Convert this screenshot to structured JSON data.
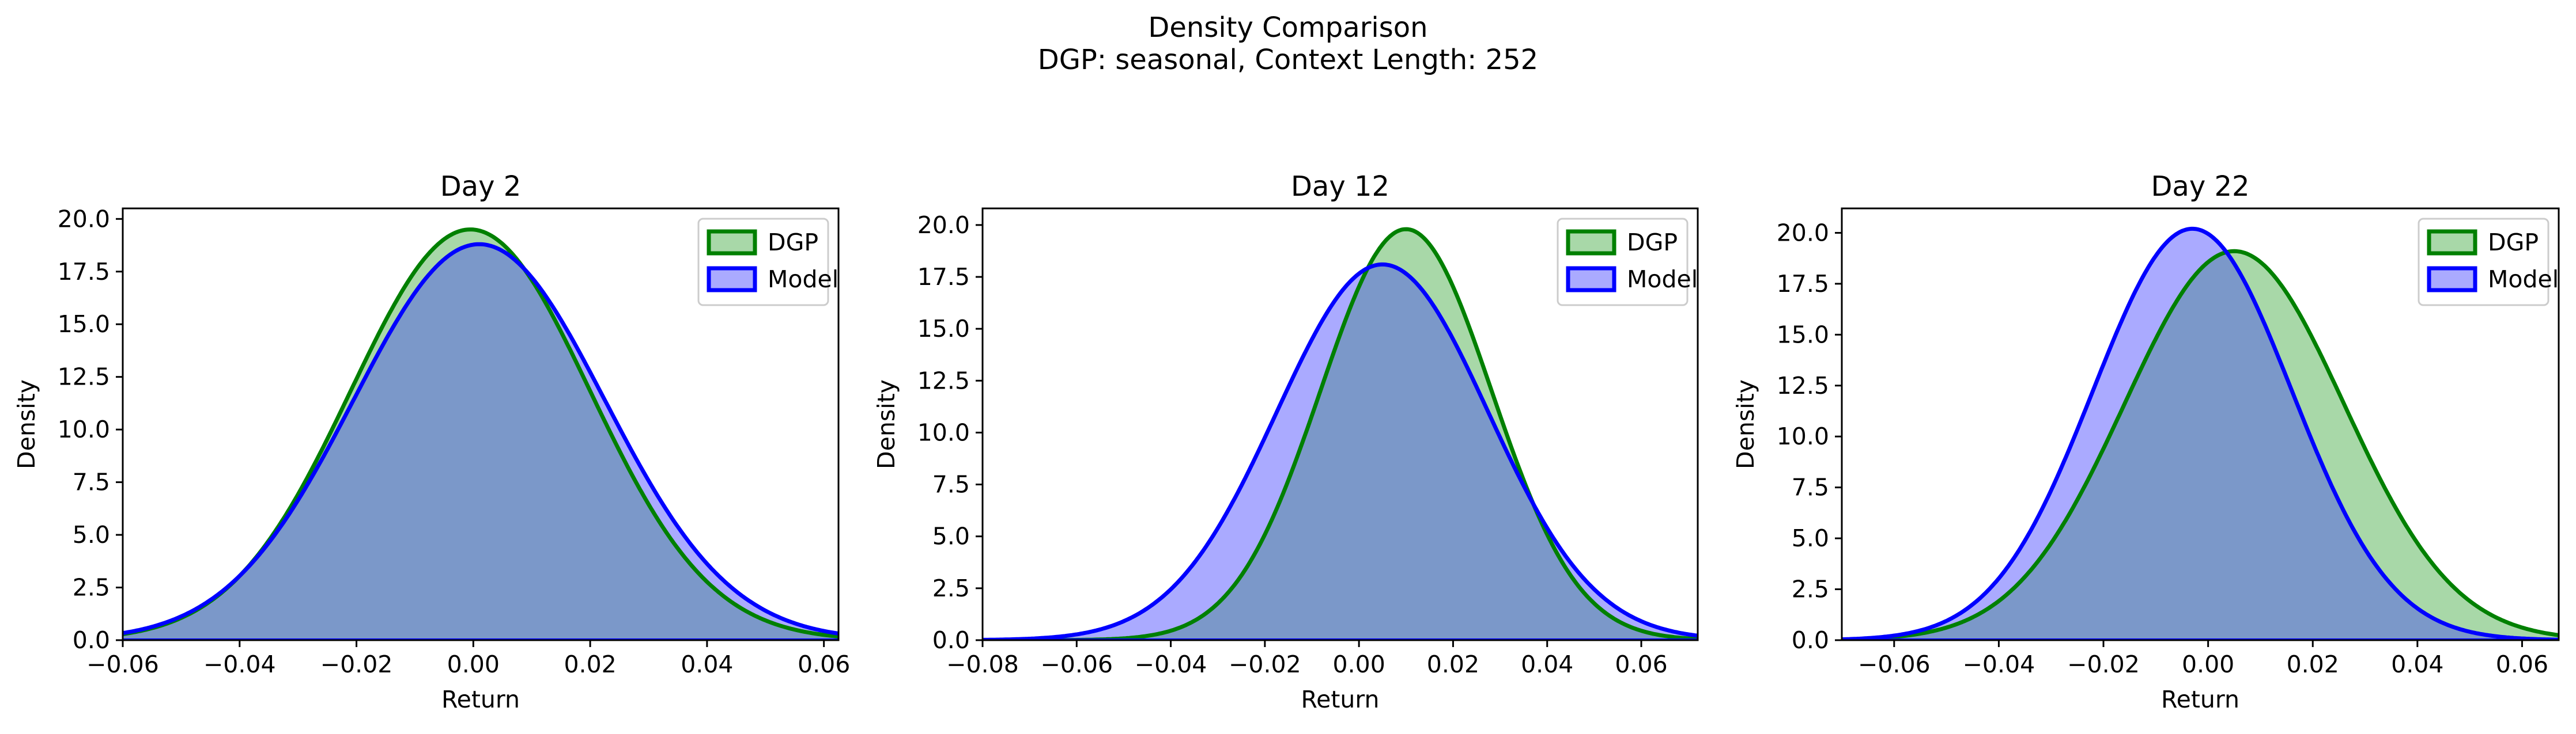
{
  "figure": {
    "title": "Density Comparison",
    "subtitle": "DGP: seasonal, Context Length: 252"
  },
  "colors": {
    "dgp_line": "#008000",
    "dgp_fill": "#a8d8a8",
    "model_line": "#0000ff",
    "model_fill": "#aaaaff",
    "overlap_fill": "#7b98c9"
  },
  "chart_data": [
    {
      "type": "area",
      "title": "Day 2",
      "xlabel": "Return",
      "ylabel": "Density",
      "xlim": [
        -0.06,
        0.0625
      ],
      "ylim": [
        0,
        20.5
      ],
      "xticks": [
        -0.06,
        -0.04,
        -0.02,
        0.0,
        0.02,
        0.04,
        0.06
      ],
      "xtick_labels": [
        "−0.06",
        "−0.04",
        "−0.02",
        "0.00",
        "0.02",
        "0.04",
        "0.06"
      ],
      "yticks": [
        0.0,
        2.5,
        5.0,
        7.5,
        10.0,
        12.5,
        15.0,
        17.5,
        20.0
      ],
      "ytick_labels": [
        "0.0",
        "2.5",
        "5.0",
        "7.5",
        "10.0",
        "12.5",
        "15.0",
        "17.5",
        "20.0"
      ],
      "legend": "top-right",
      "grid": false,
      "series": [
        {
          "name": "DGP",
          "distribution": "normal",
          "mean": -0.0005,
          "std": 0.0205,
          "peak": 19.5
        },
        {
          "name": "Model",
          "distribution": "normal",
          "mean": 0.001,
          "std": 0.0215,
          "peak": 18.8
        }
      ]
    },
    {
      "type": "area",
      "title": "Day 12",
      "xlabel": "Return",
      "ylabel": "Density",
      "xlim": [
        -0.08,
        0.072
      ],
      "ylim": [
        0,
        20.8
      ],
      "xticks": [
        -0.08,
        -0.06,
        -0.04,
        -0.02,
        0.0,
        0.02,
        0.04,
        0.06
      ],
      "xtick_labels": [
        "−0.08",
        "−0.06",
        "−0.04",
        "−0.02",
        "0.00",
        "0.02",
        "0.04",
        "0.06"
      ],
      "yticks": [
        0.0,
        2.5,
        5.0,
        7.5,
        10.0,
        12.5,
        15.0,
        17.5,
        20.0
      ],
      "ytick_labels": [
        "0.0",
        "2.5",
        "5.0",
        "7.5",
        "10.0",
        "12.5",
        "15.0",
        "17.5",
        "20.0"
      ],
      "legend": "top-right",
      "grid": false,
      "series": [
        {
          "name": "DGP",
          "distribution": "normal",
          "mean": 0.01,
          "std": 0.0182,
          "peak": 19.8
        },
        {
          "name": "Model",
          "distribution": "normal",
          "mean": 0.005,
          "std": 0.0225,
          "peak": 18.1
        }
      ]
    },
    {
      "type": "area",
      "title": "Day 22",
      "xlabel": "Return",
      "ylabel": "Density",
      "xlim": [
        -0.07,
        0.067
      ],
      "ylim": [
        0,
        21.2
      ],
      "xticks": [
        -0.06,
        -0.04,
        -0.02,
        0.0,
        0.02,
        0.04,
        0.06
      ],
      "xtick_labels": [
        "−0.06",
        "−0.04",
        "−0.02",
        "0.00",
        "0.02",
        "0.04",
        "0.06"
      ],
      "yticks": [
        0.0,
        2.5,
        5.0,
        7.5,
        10.0,
        12.5,
        15.0,
        17.5,
        20.0
      ],
      "ytick_labels": [
        "0.0",
        "2.5",
        "5.0",
        "7.5",
        "10.0",
        "12.5",
        "15.0",
        "17.5",
        "20.0"
      ],
      "legend": "top-right",
      "grid": false,
      "series": [
        {
          "name": "DGP",
          "distribution": "normal",
          "mean": 0.005,
          "std": 0.021,
          "peak": 19.1
        },
        {
          "name": "Model",
          "distribution": "normal",
          "mean": -0.003,
          "std": 0.019,
          "peak": 20.2
        }
      ]
    }
  ]
}
